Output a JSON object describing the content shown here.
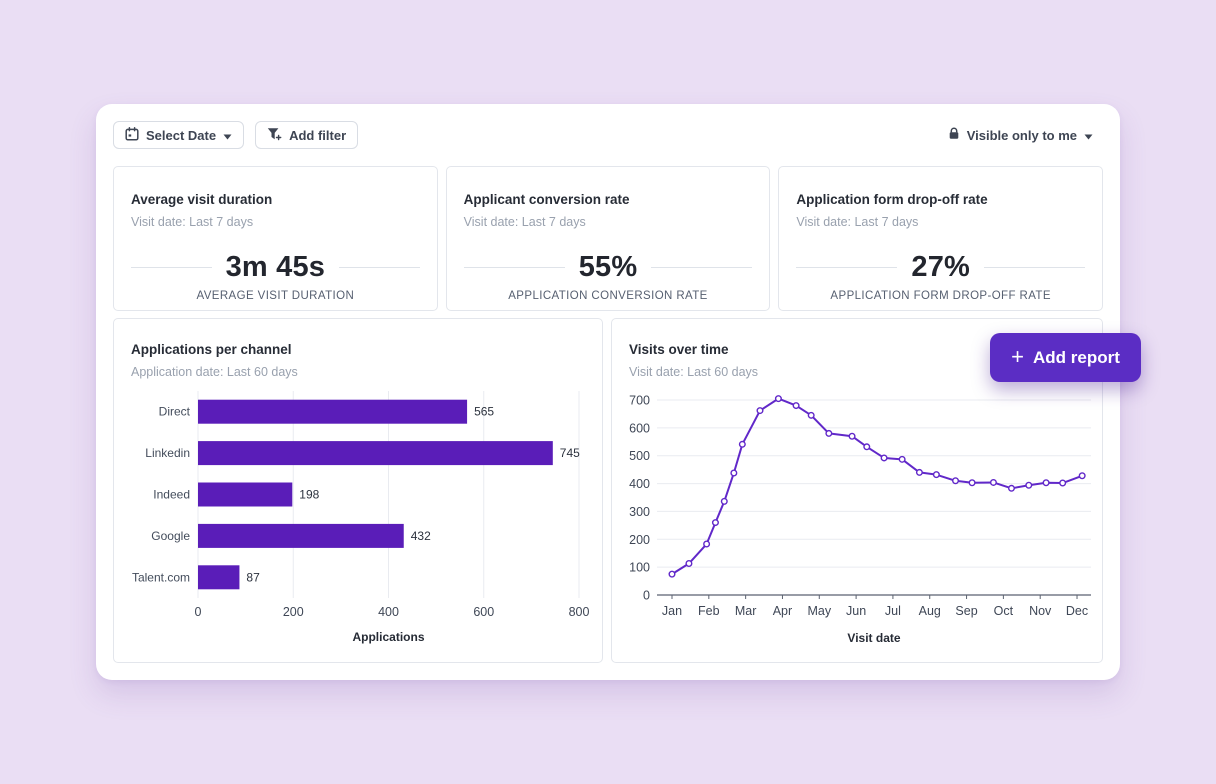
{
  "toolbar": {
    "select_date_label": "Select Date",
    "add_filter_label": "Add filter",
    "visibility_label": "Visible only to me"
  },
  "kpi_cards": [
    {
      "title": "Average visit duration",
      "subtitle": "Visit date: Last 7 days",
      "value": "3m 45s",
      "caption": "AVERAGE VISIT DURATION"
    },
    {
      "title": "Applicant conversion rate",
      "subtitle": "Visit date: Last 7 days",
      "value": "55%",
      "caption": "APPLICATION CONVERSION RATE"
    },
    {
      "title": "Application form drop-off rate",
      "subtitle": "Visit date: Last 7 days",
      "value": "27%",
      "caption": "APPLICATION FORM DROP-OFF RATE"
    }
  ],
  "add_report": {
    "plus": "+",
    "label": "Add report"
  },
  "icons": {
    "select_date": "calendar-icon",
    "add_filter": "filter-plus-icon",
    "visibility": "lock-icon",
    "dropdown": "chevron-down-icon",
    "add_report": "plus-icon"
  },
  "colors": {
    "page_background": "#eadef4",
    "panel": "#ffffff",
    "bar_purple": "#5a1db8",
    "line_purple": "#6128c9",
    "button_purple": "#5b2dc4",
    "grid": "#e9ebf0",
    "axis": "#5b6270"
  },
  "chart_data": [
    {
      "type": "bar",
      "orientation": "horizontal",
      "title": "Applications per channel",
      "subtitle": "Application date: Last 60 days",
      "categories": [
        "Direct",
        "Linkedin",
        "Indeed",
        "Google",
        "Talent.com"
      ],
      "values": [
        565,
        745,
        198,
        432,
        87
      ],
      "xlabel": "Applications",
      "xlim": [
        0,
        800
      ],
      "xticks": [
        0,
        200,
        400,
        600,
        800
      ],
      "grid": true,
      "bar_color": "#5a1db8"
    },
    {
      "type": "line",
      "title": "Visits over time",
      "subtitle": "Visit date: Last 60 days",
      "xlabel": "Visit date",
      "x_tick_labels": [
        "Jan",
        "Feb",
        "Mar",
        "Apr",
        "May",
        "Jun",
        "Jul",
        "Aug",
        "Sep",
        "Oct",
        "Nov",
        "Dec"
      ],
      "ylim": [
        0,
        700
      ],
      "yticks": [
        0,
        100,
        200,
        300,
        400,
        500,
        600,
        700
      ],
      "grid": true,
      "legend": false,
      "line_color": "#6128c9",
      "marker": "open-circle",
      "points": [
        [
          0.0,
          75
        ],
        [
          0.46,
          113
        ],
        [
          0.94,
          183
        ],
        [
          1.18,
          260
        ],
        [
          1.42,
          336
        ],
        [
          1.68,
          438
        ],
        [
          1.91,
          541
        ],
        [
          2.39,
          662
        ],
        [
          2.89,
          705
        ],
        [
          3.37,
          680
        ],
        [
          3.78,
          645
        ],
        [
          4.26,
          580
        ],
        [
          4.89,
          570
        ],
        [
          5.29,
          532
        ],
        [
          5.76,
          492
        ],
        [
          6.25,
          487
        ],
        [
          6.72,
          440
        ],
        [
          7.18,
          432
        ],
        [
          7.7,
          410
        ],
        [
          8.15,
          403
        ],
        [
          8.73,
          404
        ],
        [
          9.22,
          383
        ],
        [
          9.69,
          394
        ],
        [
          10.16,
          403
        ],
        [
          10.61,
          402
        ],
        [
          11.14,
          428
        ]
      ]
    }
  ]
}
